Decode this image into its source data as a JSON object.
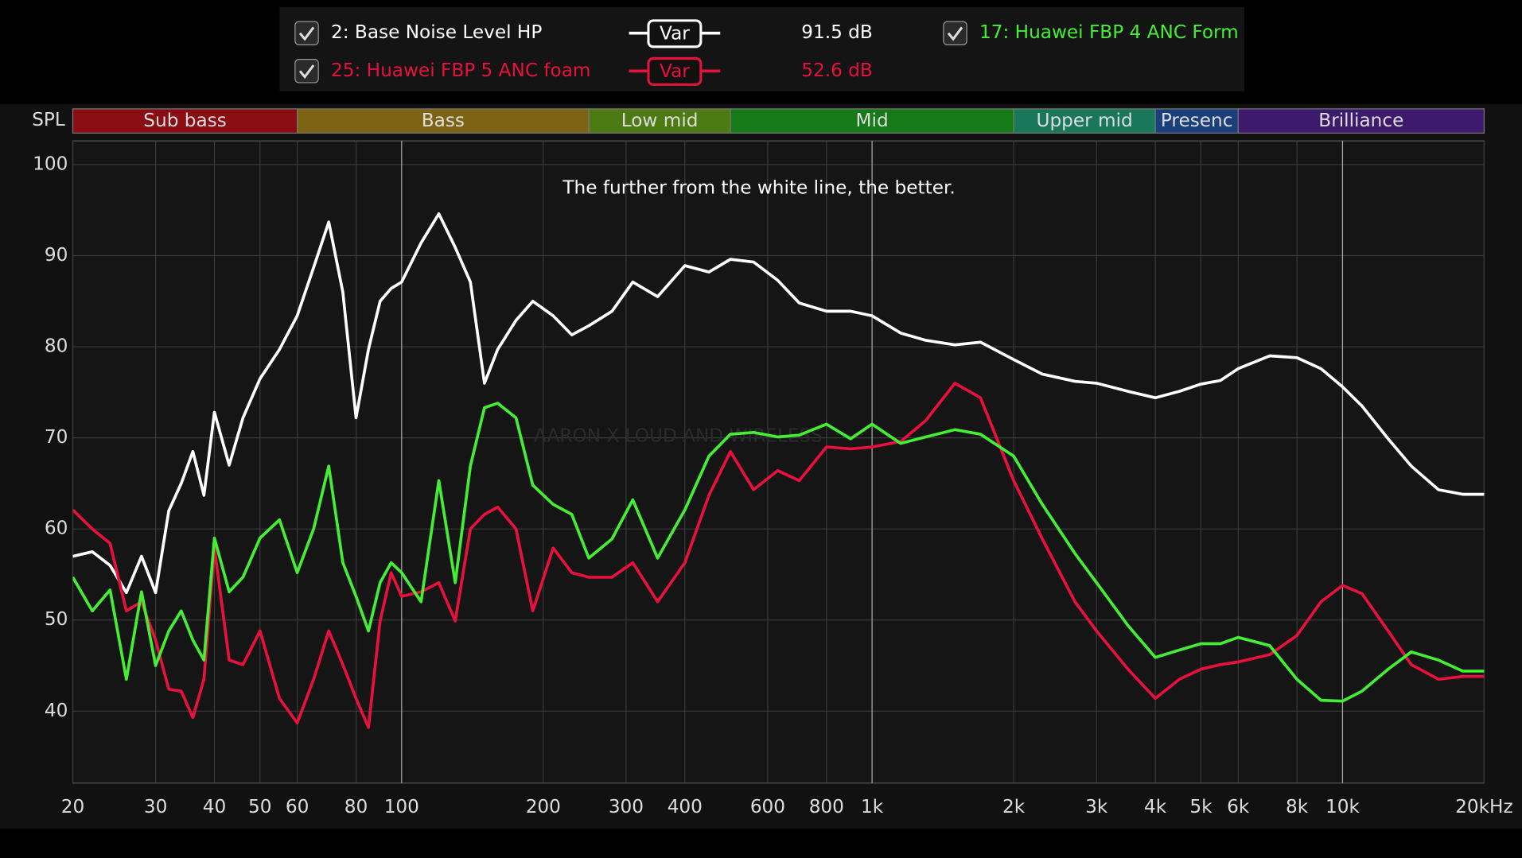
{
  "chart_data": {
    "type": "line",
    "annotation": "The further from the white line, the better.",
    "watermark": "AARON X LOUD AND WIRELESS",
    "ylabel": "SPL",
    "button_label": "Var",
    "xscale": "log",
    "grid": true,
    "xlim": [
      20,
      20000
    ],
    "ylim": [
      32.1,
      102.6
    ],
    "yticks": [
      40,
      50,
      60,
      70,
      80,
      90,
      100
    ],
    "xticks": [
      20,
      30,
      40,
      50,
      60,
      80,
      100,
      200,
      300,
      400,
      600,
      800,
      {
        "value": 1000,
        "label": "1k"
      },
      {
        "value": 2000,
        "label": "2k"
      },
      {
        "value": 3000,
        "label": "3k"
      },
      {
        "value": 4000,
        "label": "4k"
      },
      {
        "value": 5000,
        "label": "5k"
      },
      {
        "value": 6000,
        "label": "6k"
      },
      {
        "value": 8000,
        "label": "8k"
      },
      {
        "value": 10000,
        "label": "10k"
      },
      {
        "value": 20000,
        "label": "20kHz"
      }
    ],
    "bands": [
      {
        "label": "Sub bass",
        "from": 20,
        "to": 60,
        "color": "#8a0d14"
      },
      {
        "label": "Bass",
        "from": 60,
        "to": 250,
        "color": "#7d6414"
      },
      {
        "label": "Low mid",
        "from": 250,
        "to": 500,
        "color": "#4e7a14"
      },
      {
        "label": "Mid",
        "from": 500,
        "to": 2000,
        "color": "#177a18"
      },
      {
        "label": "Upper mid",
        "from": 2000,
        "to": 4000,
        "color": "#19785a"
      },
      {
        "label": "Presenc",
        "from": 4000,
        "to": 6000,
        "color": "#1b3f7a"
      },
      {
        "label": "Brilliance",
        "from": 6000,
        "to": 20000,
        "color": "#3d1a6c"
      }
    ],
    "x": [
      20,
      22,
      24,
      26,
      28,
      30,
      32,
      34,
      36,
      38,
      40,
      43,
      46,
      50,
      55,
      60,
      65,
      70,
      75,
      80,
      85,
      90,
      95,
      100,
      110,
      120,
      130,
      140,
      150,
      160,
      175,
      190,
      210,
      230,
      250,
      280,
      310,
      350,
      400,
      450,
      500,
      560,
      630,
      700,
      800,
      900,
      1000,
      1150,
      1300,
      1500,
      1700,
      2000,
      2300,
      2700,
      3000,
      3500,
      4000,
      4500,
      5000,
      5500,
      6000,
      7000,
      8000,
      9000,
      10000,
      11000,
      12500,
      14000,
      16000,
      18000,
      20000
    ],
    "series": [
      {
        "name": "2: Base Noise Level HP",
        "level": "91.5 dB",
        "color": "#ffffff",
        "values": [
          57,
          57.5,
          56,
          53,
          57,
          53,
          62,
          65,
          68.5,
          63.7,
          72.8,
          67,
          72.2,
          76.5,
          79.7,
          83.4,
          88.7,
          93.7,
          86,
          72.2,
          79.7,
          85,
          86.4,
          87.1,
          91.4,
          94.6,
          90.9,
          87.1,
          76,
          79.7,
          82.9,
          85,
          83.4,
          81.3,
          82.3,
          83.9,
          87.1,
          85.5,
          88.9,
          88.2,
          89.6,
          89.3,
          87.3,
          84.8,
          83.9,
          83.9,
          83.4,
          81.5,
          80.7,
          80.2,
          80.5,
          78.6,
          77,
          76.2,
          76,
          75.1,
          74.4,
          75.1,
          75.9,
          76.3,
          77.6,
          79,
          78.8,
          77.6,
          75.6,
          73.5,
          69.9,
          66.9,
          64.3,
          63.8,
          63.8
        ]
      },
      {
        "name": "25: Huawei FBP 5 ANC foam",
        "level": "52.6 dB",
        "color": "#e8103c",
        "values": [
          62.1,
          60,
          58.4,
          51,
          52,
          47.8,
          42.4,
          42.2,
          39.3,
          43.5,
          57.9,
          45.6,
          45.1,
          48.8,
          41.4,
          38.7,
          43.5,
          48.8,
          45.1,
          41.4,
          38.2,
          49.9,
          55.2,
          52.6,
          53.1,
          54.1,
          49.9,
          60,
          61.6,
          62.4,
          60,
          51,
          57.9,
          55.2,
          54.7,
          54.7,
          56.3,
          52,
          56.3,
          63.7,
          68.5,
          64.3,
          66.4,
          65.3,
          69,
          68.8,
          69,
          69.6,
          71.9,
          76,
          74.4,
          65.3,
          58.9,
          52,
          48.8,
          44.6,
          41.4,
          43.5,
          44.6,
          45.1,
          45.4,
          46.2,
          48.3,
          52,
          53.8,
          52.9,
          48.8,
          45.1,
          43.5,
          43.8,
          43.8
        ]
      },
      {
        "name": "17: Huawei FBP 4 ANC Form",
        "color": "#44ee33",
        "values": [
          54.7,
          51,
          53.3,
          43.5,
          53.1,
          45,
          48.8,
          51,
          47.8,
          45.6,
          59,
          53.1,
          54.7,
          59,
          61,
          55.2,
          60,
          66.9,
          56.3,
          52.6,
          48.8,
          54.1,
          56.3,
          55.2,
          52,
          65.3,
          54.1,
          66.9,
          73.3,
          73.8,
          72.2,
          64.8,
          62.7,
          61.6,
          56.8,
          58.9,
          63.2,
          56.8,
          62.1,
          68,
          70.4,
          70.6,
          70.1,
          70.3,
          71.5,
          69.9,
          71.5,
          69.4,
          70.1,
          70.9,
          70.4,
          68,
          62.7,
          57.3,
          54.1,
          49.4,
          45.9,
          46.7,
          47.4,
          47.4,
          48.1,
          47.2,
          43.5,
          41.2,
          41.1,
          42.2,
          44.6,
          46.5,
          45.6,
          44.4,
          44.4
        ]
      }
    ]
  }
}
